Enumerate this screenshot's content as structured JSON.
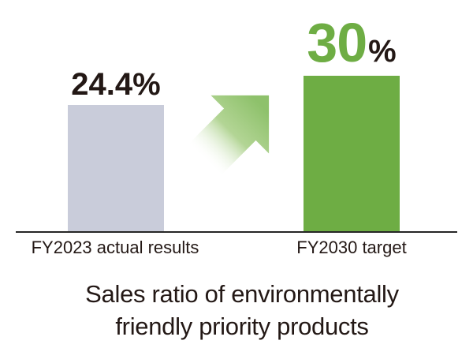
{
  "chart_data": {
    "type": "bar",
    "categories": [
      "FY2023 actual results",
      "FY2030 target"
    ],
    "values": [
      24.4,
      30
    ],
    "unit": "%",
    "data_labels": [
      "24.4%",
      "30%"
    ],
    "title": "Sales ratio of environmentally friendly priority products",
    "xlabel": "",
    "ylabel": "",
    "ylim": [
      0,
      33
    ],
    "grid": false,
    "legend": false,
    "bar_colors": [
      "#C9CCDA",
      "#6EAD44"
    ],
    "annotations": [
      {
        "type": "arrow",
        "direction": "up-right",
        "color": "#8EC16B",
        "style": "gradient fading to white at tail",
        "meaning": "increase from FY2023 actual to FY2030 target"
      }
    ]
  },
  "left_column": {
    "value_label": "24.4%",
    "axis_label": "FY2023 actual results"
  },
  "right_column": {
    "value_number": "30",
    "value_unit": "%",
    "axis_label": "FY2030 target"
  },
  "caption": {
    "lines": [
      "Sales ratio of environmentally",
      "friendly priority products"
    ],
    "full_text": "Sales ratio of environmentally friendly priority products"
  },
  "colors": {
    "bar_gray": "#C9CCDA",
    "bar_green": "#6EAD44",
    "arrow_green": "#8EC16B",
    "text_black": "#231815",
    "baseline": "#262626",
    "background": "#FFFFFF"
  }
}
